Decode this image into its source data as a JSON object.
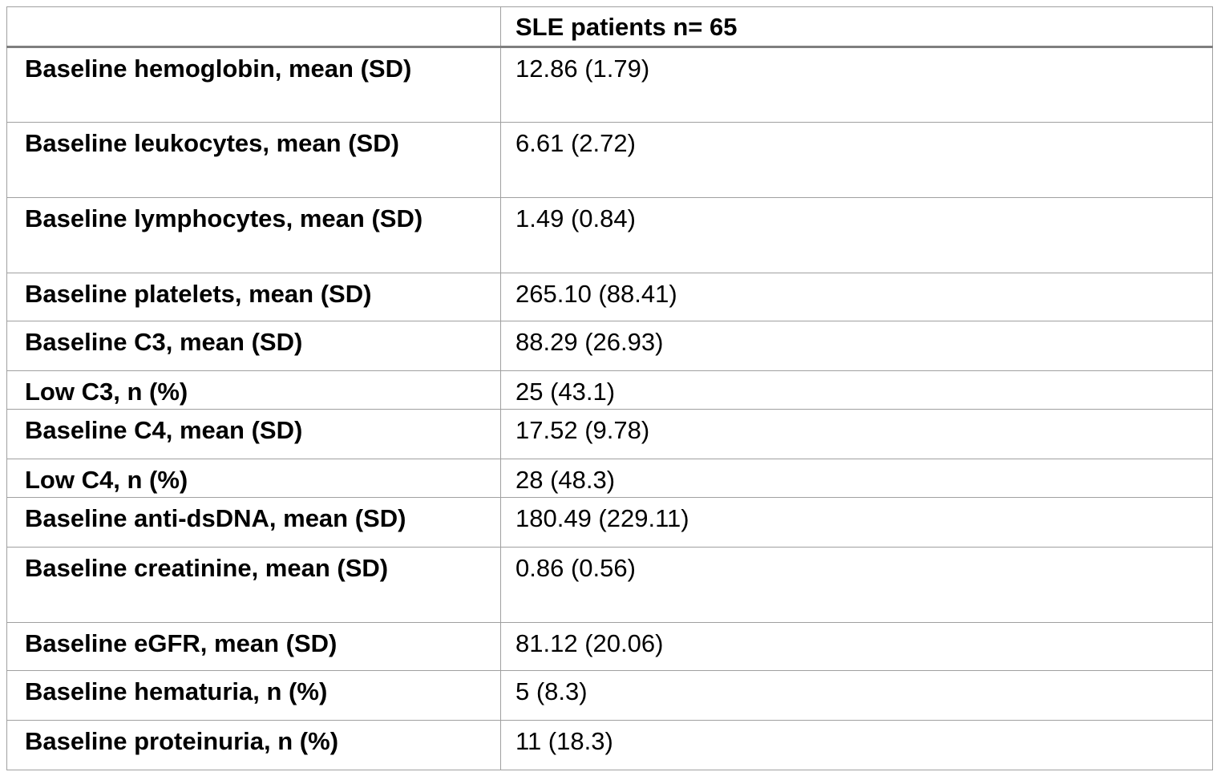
{
  "table": {
    "header": {
      "col1": "",
      "col2": "SLE patients n= 65"
    },
    "rows": [
      {
        "label": "Baseline hemoglobin, mean (SD)",
        "value": "12.86 (1.79)"
      },
      {
        "label": "Baseline leukocytes, mean (SD)",
        "value": "6.61 (2.72)"
      },
      {
        "label": "Baseline lymphocytes, mean (SD)",
        "value": "1.49 (0.84)"
      },
      {
        "label": "Baseline platelets, mean (SD)",
        "value": "265.10 (88.41)"
      },
      {
        "label": "Baseline C3, mean (SD)",
        "value": "88.29 (26.93)"
      },
      {
        "label": "Low C3, n (%)",
        "value": "25 (43.1)"
      },
      {
        "label": "Baseline C4, mean (SD)",
        "value": "17.52 (9.78)"
      },
      {
        "label": "Low C4, n (%)",
        "value": "28 (48.3)"
      },
      {
        "label": "Baseline anti-dsDNA, mean (SD)",
        "value": "180.49 (229.11)"
      },
      {
        "label": "Baseline creatinine, mean (SD)",
        "value": "0.86 (0.56)"
      },
      {
        "label": "Baseline eGFR, mean (SD)",
        "value": "81.12 (20.06)"
      },
      {
        "label": "Baseline hematuria, n (%)",
        "value": "5 (8.3)"
      },
      {
        "label": "Baseline proteinuria, n (%)",
        "value": "11 (18.3)"
      }
    ]
  }
}
